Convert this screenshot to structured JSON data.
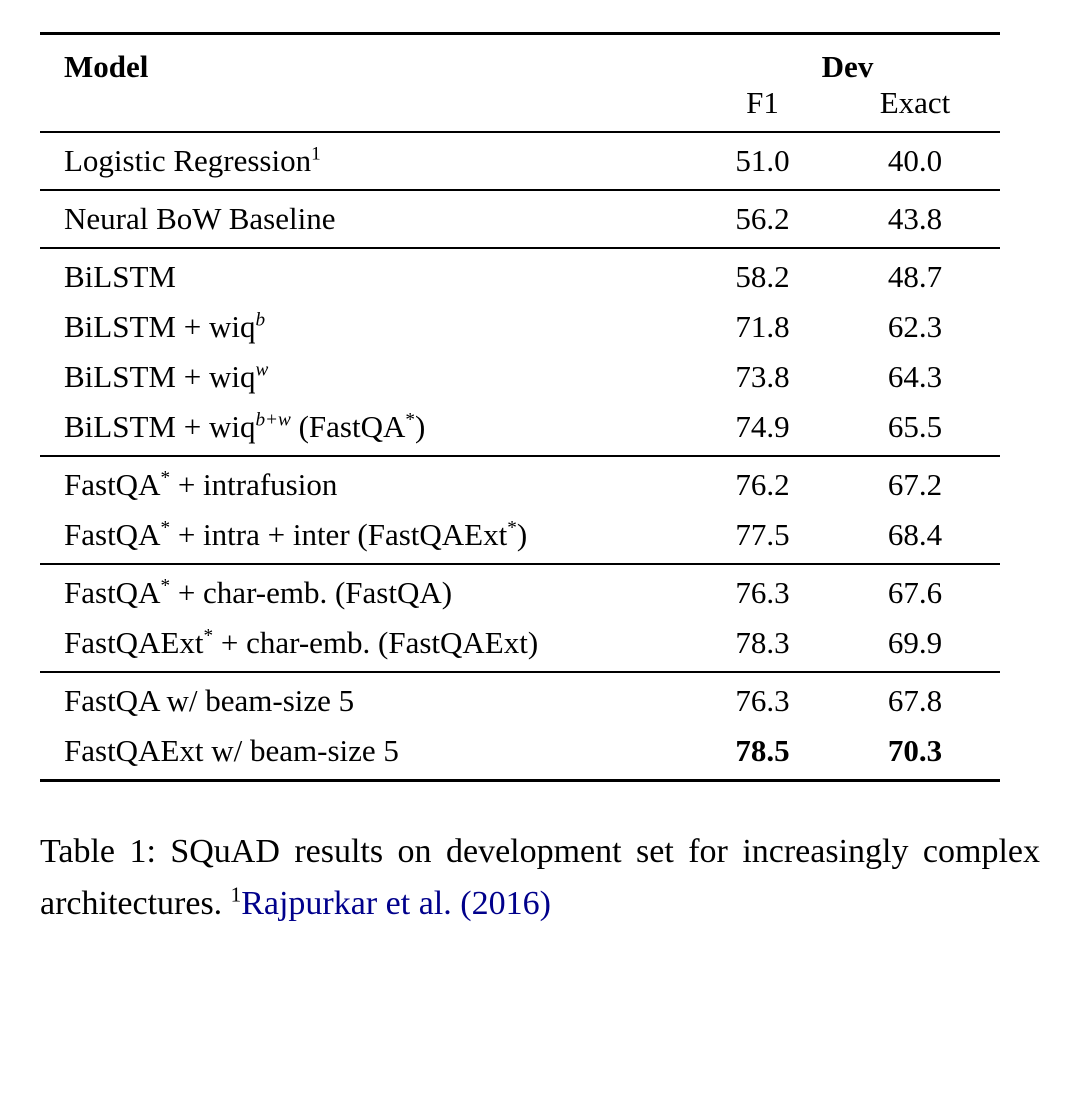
{
  "table": {
    "header": {
      "model": "Model",
      "dev": "Dev",
      "f1": "F1",
      "exact": "Exact"
    },
    "groups": [
      {
        "rows": [
          {
            "model": [
              {
                "t": "Logistic Regression"
              },
              {
                "t": "1",
                "sup": true
              }
            ],
            "f1": "51.0",
            "exact": "40.0"
          }
        ]
      },
      {
        "rows": [
          {
            "model": [
              {
                "t": "Neural BoW Baseline"
              }
            ],
            "f1": "56.2",
            "exact": "43.8"
          }
        ]
      },
      {
        "rows": [
          {
            "model": [
              {
                "t": "BiLSTM"
              }
            ],
            "f1": "58.2",
            "exact": "48.7"
          },
          {
            "model": [
              {
                "t": "BiLSTM + wiq"
              },
              {
                "t": "b",
                "sup": true,
                "i": true
              }
            ],
            "f1": "71.8",
            "exact": "62.3"
          },
          {
            "model": [
              {
                "t": "BiLSTM + wiq"
              },
              {
                "t": "w",
                "sup": true,
                "i": true
              }
            ],
            "f1": "73.8",
            "exact": "64.3"
          },
          {
            "model": [
              {
                "t": "BiLSTM + wiq"
              },
              {
                "t": "b+w",
                "sup": true,
                "i": true
              },
              {
                "t": " (FastQA"
              },
              {
                "t": "*",
                "sup": true
              },
              {
                "t": ")"
              }
            ],
            "f1": "74.9",
            "exact": "65.5"
          }
        ]
      },
      {
        "rows": [
          {
            "model": [
              {
                "t": "FastQA"
              },
              {
                "t": "*",
                "sup": true
              },
              {
                "t": " + intrafusion"
              }
            ],
            "f1": "76.2",
            "exact": "67.2"
          },
          {
            "model": [
              {
                "t": "FastQA"
              },
              {
                "t": "*",
                "sup": true
              },
              {
                "t": " + intra + inter (FastQAExt"
              },
              {
                "t": "*",
                "sup": true
              },
              {
                "t": ")"
              }
            ],
            "f1": "77.5",
            "exact": "68.4"
          }
        ]
      },
      {
        "rows": [
          {
            "model": [
              {
                "t": "FastQA"
              },
              {
                "t": "*",
                "sup": true
              },
              {
                "t": " + char-emb. (FastQA)"
              }
            ],
            "f1": "76.3",
            "exact": "67.6"
          },
          {
            "model": [
              {
                "t": "FastQAExt"
              },
              {
                "t": "*",
                "sup": true
              },
              {
                "t": " + char-emb. (FastQAExt)"
              }
            ],
            "f1": "78.3",
            "exact": "69.9"
          }
        ]
      },
      {
        "rows": [
          {
            "model": [
              {
                "t": "FastQA w/ beam-size 5"
              }
            ],
            "f1": "76.3",
            "exact": "67.8"
          },
          {
            "model": [
              {
                "t": "FastQAExt w/ beam-size 5"
              }
            ],
            "f1": "78.5",
            "exact": "70.3",
            "bold": true
          }
        ]
      }
    ]
  },
  "caption": {
    "link_color": "#00008B",
    "segments": [
      {
        "t": "Table 1: SQuAD results on development set for increasingly complex architectures. "
      },
      {
        "t": "1",
        "sup": true
      },
      {
        "t": "Rajpurkar et al. ",
        "link": true
      },
      {
        "t": "(2016)",
        "link": true
      }
    ]
  }
}
